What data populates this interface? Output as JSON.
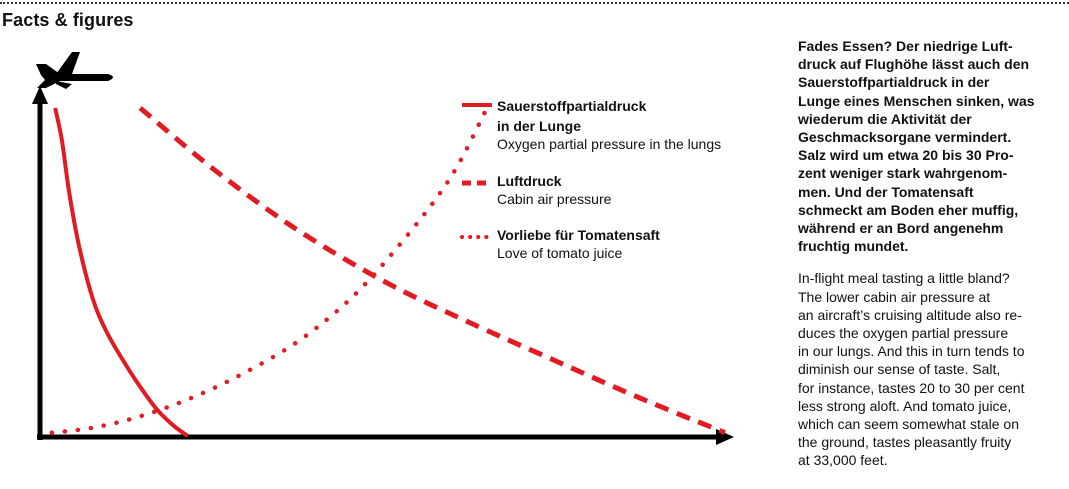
{
  "page": {
    "title": "Facts & figures"
  },
  "colors": {
    "accent": "#e11b22",
    "axis": "#000000",
    "text": "#111111"
  },
  "icons": {
    "airplane": "airplane-icon"
  },
  "text_block": {
    "de": "Fades Essen? Der niedrige Luft-\ndruck auf Flughöhe lässt auch den\nSauerstoffpartialdruck in der\nLunge eines Menschen sinken, was\nwiederum die Aktivität der\nGeschmacksorgane vermindert.\nSalz wird um etwa 20 bis 30 Pro-\nzent weniger stark wahrgenom-\nmen. Und der Tomatensaft\nschmeckt am Boden eher muffig,\nwährend er an Bord angenehm\nfruchtig mundet.",
    "en": "In-flight meal tasting a little bland?\nThe lower cabin air pressure at\nan aircraft’s cruising altitude also re-\nduces the oxygen partial pressure\nin our lungs. And this in turn tends to\ndiminish our sense of taste. Salt,\nfor instance, tastes 20 to 30 per cent\nless strong aloft. And tomato juice,\nwhich can seem somewhat stale on\nthe ground, tastes pleasantly fruity\nat 33,000 feet."
  },
  "chart_data": {
    "type": "line",
    "title": "",
    "xlabel": "",
    "ylabel": "",
    "xlim": [
      0,
      100
    ],
    "ylim": [
      0,
      100
    ],
    "grid": false,
    "legend_position": "top-right",
    "series": [
      {
        "name_de": "Sauerstoffpartialdruck",
        "name_de_line2": "in der Lunge",
        "name_en": "Oxygen partial pressure in the lungs",
        "style": "solid",
        "color": "#e11b22",
        "points": [
          [
            1.5,
            100
          ],
          [
            2.5,
            90
          ],
          [
            3.5,
            75
          ],
          [
            5,
            58
          ],
          [
            7,
            42
          ],
          [
            9,
            32
          ],
          [
            11.5,
            23
          ],
          [
            14,
            15
          ],
          [
            16.5,
            8
          ],
          [
            19,
            3
          ],
          [
            21,
            0
          ]
        ]
      },
      {
        "name_de": "Luftdruck",
        "name_en": "Cabin air pressure",
        "style": "dashed",
        "color": "#e11b22",
        "points": [
          [
            14,
            100
          ],
          [
            25,
            81
          ],
          [
            37,
            63
          ],
          [
            50,
            47
          ],
          [
            62,
            35
          ],
          [
            75,
            23
          ],
          [
            87,
            12
          ],
          [
            100,
            1
          ]
        ]
      },
      {
        "name_de": "Vorliebe für Tomatensaft",
        "name_en": "Love of tomato juice",
        "style": "dotted",
        "color": "#e11b22",
        "points": [
          [
            1,
            1
          ],
          [
            7,
            2.5
          ],
          [
            14,
            6
          ],
          [
            22,
            12
          ],
          [
            30,
            20
          ],
          [
            38,
            30
          ],
          [
            46,
            44
          ],
          [
            54,
            63
          ],
          [
            60,
            80
          ],
          [
            65,
            100
          ]
        ]
      }
    ]
  }
}
